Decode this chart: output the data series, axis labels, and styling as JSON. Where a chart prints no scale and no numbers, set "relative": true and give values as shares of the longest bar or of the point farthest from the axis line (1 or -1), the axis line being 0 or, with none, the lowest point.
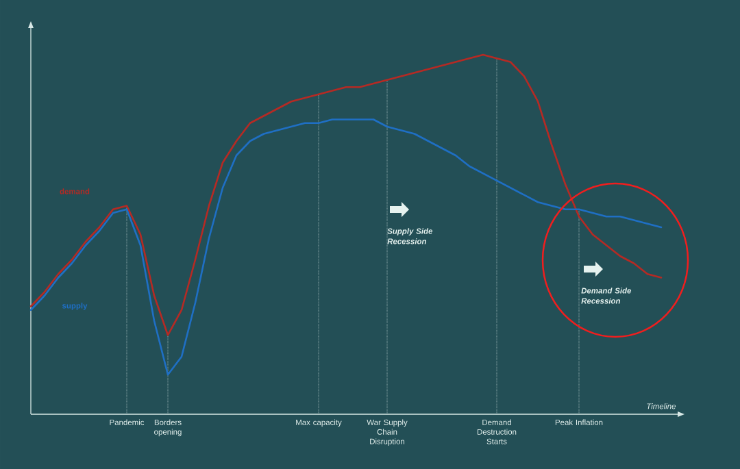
{
  "chart_data": {
    "type": "line",
    "relative": true,
    "xlabel": "Timeline",
    "categories": [
      null,
      null,
      null,
      null,
      null,
      null,
      null,
      "Pandemic",
      null,
      null,
      "Borders opening",
      null,
      null,
      null,
      null,
      null,
      null,
      null,
      null,
      null,
      null,
      "Max capacity",
      null,
      null,
      null,
      null,
      "War Supply Chain Disruption",
      null,
      null,
      null,
      null,
      null,
      null,
      null,
      "Demand Destruction Starts",
      null,
      null,
      null,
      null,
      null,
      "Peak Inflation",
      null,
      null,
      null,
      null,
      null,
      null
    ],
    "series": [
      {
        "name": "demand",
        "color": "#b52a24",
        "values": [
          0.3,
          0.34,
          0.39,
          0.43,
          0.48,
          0.52,
          0.57,
          0.58,
          0.5,
          0.33,
          0.22,
          0.29,
          0.43,
          0.58,
          0.7,
          0.76,
          0.81,
          0.83,
          0.85,
          0.87,
          0.88,
          0.89,
          0.9,
          0.91,
          0.91,
          0.92,
          0.93,
          0.94,
          0.95,
          0.96,
          0.97,
          0.98,
          0.99,
          1.0,
          0.99,
          0.98,
          0.94,
          0.87,
          0.75,
          0.64,
          0.55,
          0.5,
          0.47,
          0.44,
          0.42,
          0.39,
          0.38
        ]
      },
      {
        "name": "supply",
        "color": "#1f6fc4",
        "values": [
          0.29,
          0.33,
          0.38,
          0.42,
          0.47,
          0.51,
          0.56,
          0.57,
          0.47,
          0.26,
          0.11,
          0.16,
          0.31,
          0.49,
          0.63,
          0.72,
          0.76,
          0.78,
          0.79,
          0.8,
          0.81,
          0.81,
          0.82,
          0.82,
          0.82,
          0.82,
          0.8,
          0.79,
          0.78,
          0.76,
          0.74,
          0.72,
          0.69,
          0.67,
          0.65,
          0.63,
          0.61,
          0.59,
          0.58,
          0.57,
          0.57,
          0.56,
          0.55,
          0.55,
          0.54,
          0.53,
          0.52
        ]
      }
    ],
    "ref_lines": [
      {
        "axis": "x",
        "value": "Pandemic",
        "color": "#c8d8d8",
        "line_style": "dotted"
      },
      {
        "axis": "x",
        "value": "Borders opening",
        "color": "#c8d8d8",
        "line_style": "dotted"
      },
      {
        "axis": "x",
        "value": "Max capacity",
        "color": "#c8d8d8",
        "line_style": "dotted"
      },
      {
        "axis": "x",
        "value": "War Supply Chain Disruption",
        "color": "#c8d8d8",
        "line_style": "dotted"
      },
      {
        "axis": "x",
        "value": "Demand Destruction Starts",
        "color": "#c8d8d8",
        "line_style": "dotted"
      },
      {
        "axis": "x",
        "value": "Peak Inflation",
        "color": "#c8d8d8",
        "line_style": "dotted"
      }
    ],
    "annotations": [
      "Supply Side Recession",
      "Demand Side Recession"
    ]
  }
}
